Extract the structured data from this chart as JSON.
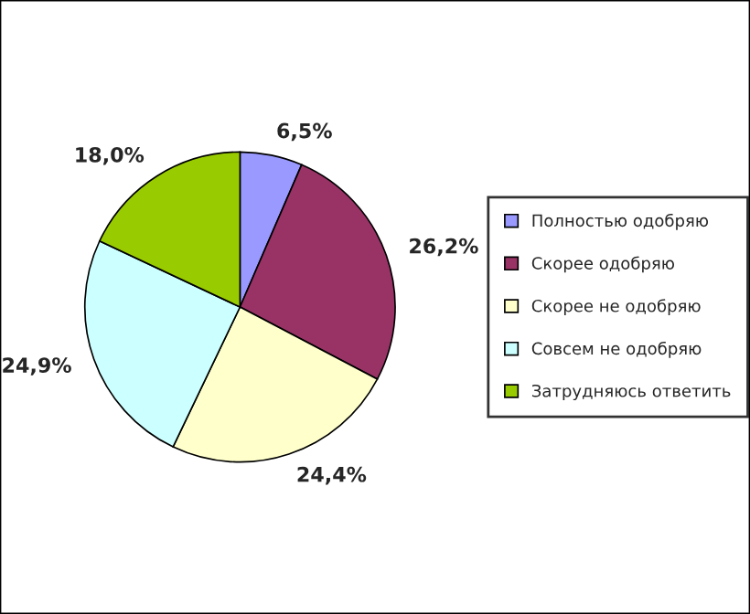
{
  "chart_data": {
    "type": "pie",
    "categories": [
      "Полностью одобряю",
      "Скорее одобряю",
      "Скорее не одобряю",
      "Совсем не одобряю",
      "Затрудняюсь ответить"
    ],
    "values": [
      6.5,
      26.2,
      24.4,
      24.9,
      18.0
    ],
    "value_labels": [
      "6,5%",
      "26,2%",
      "24,4%",
      "24,9%",
      "18,0%"
    ],
    "colors": [
      "#9999ff",
      "#993366",
      "#ffffcc",
      "#ccffff",
      "#99cc00"
    ],
    "legend": "right"
  }
}
